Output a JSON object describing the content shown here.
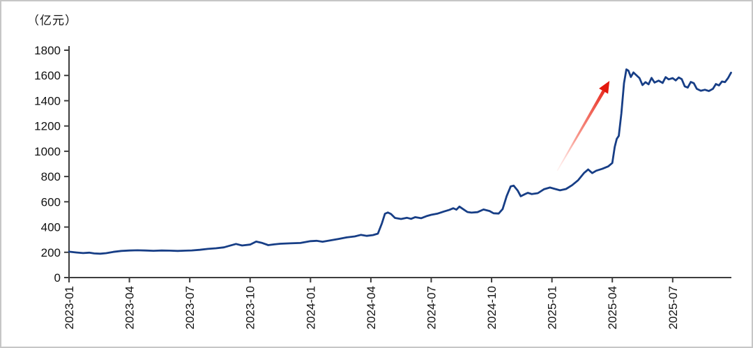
{
  "unit_label": "（亿元）",
  "chart_data": {
    "type": "line",
    "title": "",
    "ylabel_unit": "（亿元）",
    "xlabel": "",
    "ylim": [
      0,
      1800
    ],
    "ytick_interval": 200,
    "yticks": [
      0,
      200,
      400,
      600,
      800,
      1000,
      1200,
      1400,
      1600,
      1800
    ],
    "xticks": [
      "2023-01",
      "2023-04",
      "2023-07",
      "2023-10",
      "2024-01",
      "2024-04",
      "2024-07",
      "2024-10",
      "2025-01",
      "2025-04",
      "2025-07"
    ],
    "xtick_months": [
      0,
      3,
      6,
      9,
      12,
      15,
      18,
      21,
      24,
      27,
      30
    ],
    "x_unit": "months_since_2023-01",
    "grid": false,
    "legend": "none",
    "line_color": "#173e86",
    "axis_color": "#3d3d3d",
    "text_color": "#111111",
    "arrow_color": "#e3180d",
    "series": [
      {
        "name": "scale-in-yi-yuan",
        "points": [
          [
            0.0,
            205
          ],
          [
            0.35,
            199
          ],
          [
            0.7,
            194
          ],
          [
            1.0,
            197
          ],
          [
            1.25,
            191
          ],
          [
            1.55,
            189
          ],
          [
            1.85,
            193
          ],
          [
            2.2,
            203
          ],
          [
            2.6,
            211
          ],
          [
            3.0,
            214
          ],
          [
            3.4,
            216
          ],
          [
            3.8,
            214
          ],
          [
            4.2,
            212
          ],
          [
            4.6,
            214
          ],
          [
            5.0,
            213
          ],
          [
            5.4,
            211
          ],
          [
            5.8,
            213
          ],
          [
            6.1,
            215
          ],
          [
            6.5,
            220
          ],
          [
            6.9,
            227
          ],
          [
            7.3,
            232
          ],
          [
            7.7,
            239
          ],
          [
            8.0,
            253
          ],
          [
            8.3,
            266
          ],
          [
            8.6,
            254
          ],
          [
            9.0,
            261
          ],
          [
            9.3,
            285
          ],
          [
            9.6,
            274
          ],
          [
            9.9,
            257
          ],
          [
            10.2,
            263
          ],
          [
            10.5,
            268
          ],
          [
            11.0,
            271
          ],
          [
            11.5,
            274
          ],
          [
            12.0,
            288
          ],
          [
            12.3,
            291
          ],
          [
            12.6,
            284
          ],
          [
            13.0,
            295
          ],
          [
            13.4,
            306
          ],
          [
            13.8,
            318
          ],
          [
            14.2,
            326
          ],
          [
            14.5,
            338
          ],
          [
            14.8,
            330
          ],
          [
            15.1,
            336
          ],
          [
            15.35,
            348
          ],
          [
            15.55,
            430
          ],
          [
            15.7,
            505
          ],
          [
            15.85,
            515
          ],
          [
            16.0,
            503
          ],
          [
            16.2,
            472
          ],
          [
            16.5,
            464
          ],
          [
            16.8,
            473
          ],
          [
            17.0,
            465
          ],
          [
            17.2,
            478
          ],
          [
            17.5,
            470
          ],
          [
            17.8,
            488
          ],
          [
            18.0,
            497
          ],
          [
            18.3,
            506
          ],
          [
            18.6,
            521
          ],
          [
            18.9,
            536
          ],
          [
            19.1,
            549
          ],
          [
            19.25,
            538
          ],
          [
            19.4,
            562
          ],
          [
            19.6,
            540
          ],
          [
            19.8,
            519
          ],
          [
            20.0,
            514
          ],
          [
            20.3,
            518
          ],
          [
            20.6,
            539
          ],
          [
            20.9,
            527
          ],
          [
            21.1,
            509
          ],
          [
            21.35,
            507
          ],
          [
            21.55,
            542
          ],
          [
            21.75,
            645
          ],
          [
            21.95,
            722
          ],
          [
            22.1,
            728
          ],
          [
            22.3,
            688
          ],
          [
            22.45,
            644
          ],
          [
            22.6,
            656
          ],
          [
            22.8,
            671
          ],
          [
            23.0,
            661
          ],
          [
            23.3,
            668
          ],
          [
            23.6,
            699
          ],
          [
            23.9,
            713
          ],
          [
            24.1,
            704
          ],
          [
            24.4,
            691
          ],
          [
            24.7,
            701
          ],
          [
            25.0,
            731
          ],
          [
            25.3,
            771
          ],
          [
            25.6,
            829
          ],
          [
            25.8,
            856
          ],
          [
            26.0,
            827
          ],
          [
            26.2,
            846
          ],
          [
            26.5,
            861
          ],
          [
            26.8,
            880
          ],
          [
            27.0,
            907
          ],
          [
            27.12,
            1035
          ],
          [
            27.22,
            1098
          ],
          [
            27.32,
            1122
          ],
          [
            27.45,
            1300
          ],
          [
            27.58,
            1540
          ],
          [
            27.7,
            1648
          ],
          [
            27.8,
            1638
          ],
          [
            27.92,
            1588
          ],
          [
            28.05,
            1624
          ],
          [
            28.2,
            1601
          ],
          [
            28.35,
            1579
          ],
          [
            28.5,
            1524
          ],
          [
            28.65,
            1547
          ],
          [
            28.8,
            1530
          ],
          [
            28.95,
            1581
          ],
          [
            29.1,
            1544
          ],
          [
            29.3,
            1559
          ],
          [
            29.5,
            1541
          ],
          [
            29.65,
            1587
          ],
          [
            29.8,
            1569
          ],
          [
            30.0,
            1579
          ],
          [
            30.15,
            1561
          ],
          [
            30.3,
            1584
          ],
          [
            30.45,
            1571
          ],
          [
            30.6,
            1514
          ],
          [
            30.75,
            1504
          ],
          [
            30.9,
            1549
          ],
          [
            31.05,
            1539
          ],
          [
            31.2,
            1494
          ],
          [
            31.4,
            1479
          ],
          [
            31.6,
            1487
          ],
          [
            31.8,
            1477
          ],
          [
            32.0,
            1494
          ],
          [
            32.15,
            1532
          ],
          [
            32.3,
            1521
          ],
          [
            32.45,
            1552
          ],
          [
            32.6,
            1547
          ],
          [
            32.75,
            1579
          ],
          [
            32.9,
            1622
          ]
        ]
      }
    ],
    "annotation_arrow": {
      "from": [
        24.26,
        845
      ],
      "to": [
        26.86,
        1557
      ]
    }
  }
}
